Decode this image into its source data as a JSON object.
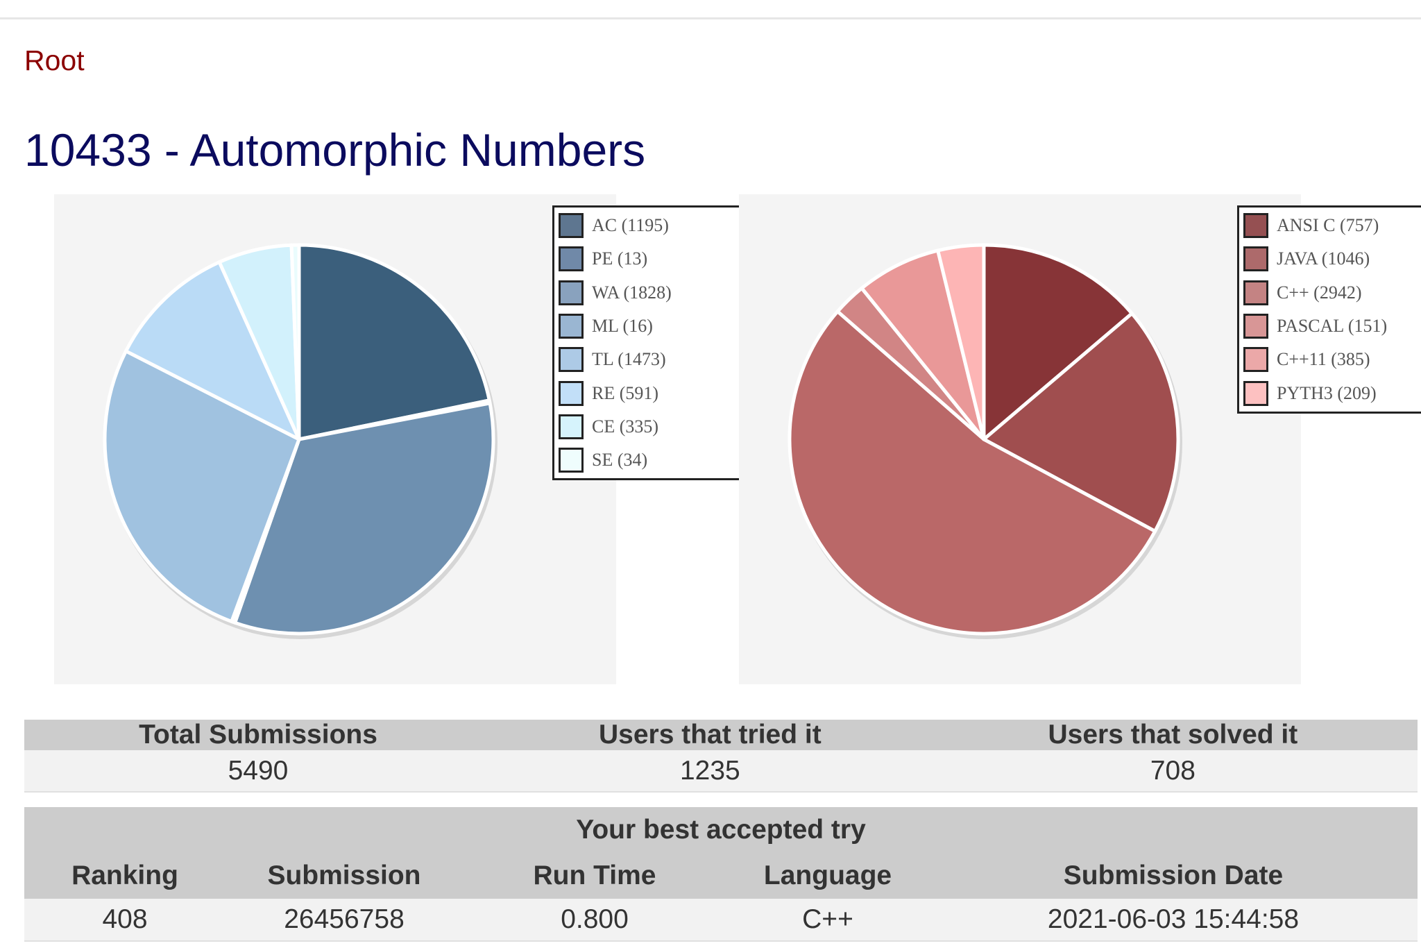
{
  "breadcrumb": {
    "root_label": "Root"
  },
  "page": {
    "title": "10433 - Automorphic Numbers"
  },
  "chart_data": [
    {
      "type": "pie",
      "name": "verdicts",
      "legend_position": "top-right",
      "slices": [
        {
          "label": "AC (1195)",
          "category": "AC",
          "value": 1195,
          "color": "#3b5f7c",
          "legend_color": "#5e7690"
        },
        {
          "label": "PE (13)",
          "category": "PE",
          "value": 13,
          "color": "#5a7da0",
          "legend_color": "#7089a8"
        },
        {
          "label": "WA (1828)",
          "category": "WA",
          "value": 1828,
          "color": "#6e90b0",
          "legend_color": "#89a2be"
        },
        {
          "label": "ML (16)",
          "category": "ML",
          "value": 16,
          "color": "#86a8c8",
          "legend_color": "#9ab6d2"
        },
        {
          "label": "TL (1473)",
          "category": "TL",
          "value": 1473,
          "color": "#a0c2e0",
          "legend_color": "#adcae6"
        },
        {
          "label": "RE (591)",
          "category": "RE",
          "value": 591,
          "color": "#badbf6",
          "legend_color": "#c2dff8"
        },
        {
          "label": "CE (335)",
          "category": "CE",
          "value": 335,
          "color": "#d2f1fc",
          "legend_color": "#d6f3fc"
        },
        {
          "label": "SE (34)",
          "category": "SE",
          "value": 34,
          "color": "#eafcfd",
          "legend_color": "#effdfd"
        }
      ]
    },
    {
      "type": "pie",
      "name": "languages",
      "legend_position": "top-right",
      "slices": [
        {
          "label": "ANSI C (757)",
          "category": "ANSI C",
          "value": 757,
          "color": "#873437",
          "legend_color": "#955052"
        },
        {
          "label": "JAVA (1046)",
          "category": "JAVA",
          "value": 1046,
          "color": "#a04e4f",
          "legend_color": "#ad6a6b"
        },
        {
          "label": "C++ (2942)",
          "category": "C++",
          "value": 2942,
          "color": "#ba6868",
          "legend_color": "#c48383"
        },
        {
          "label": "PASCAL (151)",
          "category": "PASCAL",
          "value": 151,
          "color": "#d18585",
          "legend_color": "#d89696"
        },
        {
          "label": "C++11 (385)",
          "category": "C++11",
          "value": 385,
          "color": "#e99898",
          "legend_color": "#eba8a8"
        },
        {
          "label": "PYTH3 (209)",
          "category": "PYTH3",
          "value": 209,
          "color": "#fdb5b5",
          "legend_color": "#fdc1c1"
        }
      ]
    }
  ],
  "totals": {
    "headers": [
      "Total Submissions",
      "Users that tried it",
      "Users that solved it"
    ],
    "values": [
      "5490",
      "1235",
      "708"
    ]
  },
  "best_try": {
    "title": "Your best accepted try",
    "headers": [
      "Ranking",
      "Submission",
      "Run Time",
      "Language",
      "Submission Date"
    ],
    "values": [
      "408",
      "26456758",
      "0.800",
      "C++",
      "2021-06-03 15:44:58"
    ]
  }
}
